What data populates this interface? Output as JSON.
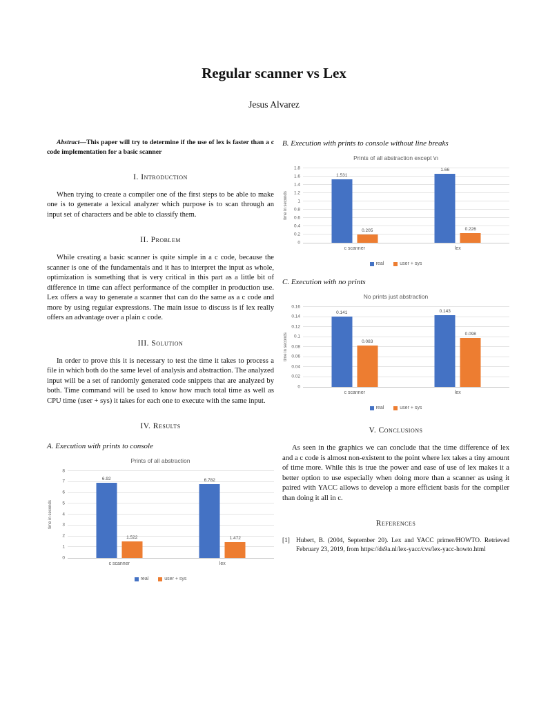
{
  "paper": {
    "title": "Regular scanner vs Lex",
    "author": "Jesus Alvarez",
    "abstract_label": "Abstract—",
    "abstract_text": "This paper will try to determine if the use of lex is faster than a c code implementation for a basic scanner",
    "sections": [
      {
        "heading": "I. Introduction",
        "body": "When trying to create a compiler one of the first steps to be able to make one is to generate a lexical analyzer which purpose is to scan through an input set of characters and be able to classify them."
      },
      {
        "heading": "II. Problem",
        "body": "While creating a basic scanner is quite simple in a c code, because the scanner is one of the fundamentals and it has to interpret the input as whole, optimization is something that is very critical in this part as a little bit of difference in time can affect performance of the compiler in production use. Lex offers a way to generate a scanner that can do the same as a c code and more by using regular expressions. The main issue to discuss is if lex really offers an advantage over a plain c code."
      },
      {
        "heading": "III. Solution",
        "body": "In order to prove this it is necessary to test the time it takes to process a file in which both do the same level of analysis and abstraction. The analyzed input will be a set of randomly generated code snippets that are analyzed by both. Time command will be used to know how much total time as well as CPU time (user + sys) it takes for each one to execute with the same input."
      },
      {
        "heading": "IV. Results",
        "body": ""
      },
      {
        "heading": "V. Conclusions",
        "body": "As seen in the graphics we can conclude that the time difference of lex and a c code is almost non-existent to the point where lex takes a tiny amount of time more. While this is true the power and ease of use of lex makes it a better option to use especially when doing more than a scanner as using it paired with YACC allows to develop a more efficient basis for the compiler than doing it all in c."
      }
    ],
    "subsections": [
      {
        "heading": "A. Execution with prints to console"
      },
      {
        "heading": "B. Execution with prints to console without line breaks"
      },
      {
        "heading": "C. Execution with no prints"
      }
    ],
    "references": {
      "heading": "References",
      "items": [
        {
          "number": "[1]",
          "text": "Hubert, B. (2004, September 20). Lex and YACC primer/HOWTO. Retrieved February 23, 2019, from https://ds9a.nl/lex-yacc/cvs/lex-yacc-howto.html"
        }
      ]
    }
  },
  "chart_data": [
    {
      "type": "bar",
      "title": "Prints of all abstraction",
      "ylabel": "time in seconds",
      "xlabel": "",
      "categories": [
        "c scanner",
        "lex"
      ],
      "series": [
        {
          "name": "real",
          "color": "#4472C4",
          "values": [
            6.92,
            6.782
          ]
        },
        {
          "name": "user + sys",
          "color": "#ED7D31",
          "values": [
            1.522,
            1.472
          ]
        }
      ],
      "ylim": [
        0,
        8
      ],
      "yticks": [
        0,
        1,
        2,
        3,
        4,
        5,
        6,
        7,
        8
      ],
      "grid": true,
      "legend_position": "bottom"
    },
    {
      "type": "bar",
      "title": "Prints of all abstraction except \\n",
      "ylabel": "time in seconds",
      "xlabel": "",
      "categories": [
        "c scanner",
        "lex"
      ],
      "series": [
        {
          "name": "real",
          "color": "#4472C4",
          "values": [
            1.531,
            1.66
          ]
        },
        {
          "name": "user + sys",
          "color": "#ED7D31",
          "values": [
            0.205,
            0.226
          ]
        }
      ],
      "ylim": [
        0,
        1.8
      ],
      "yticks": [
        0,
        0.2,
        0.4,
        0.6,
        0.8,
        1,
        1.2,
        1.4,
        1.6,
        1.8
      ],
      "grid": true,
      "legend_position": "bottom"
    },
    {
      "type": "bar",
      "title": "No prints just abstraction",
      "ylabel": "time in seconds",
      "xlabel": "",
      "categories": [
        "c scanner",
        "lex"
      ],
      "series": [
        {
          "name": "real",
          "color": "#4472C4",
          "values": [
            0.141,
            0.143
          ]
        },
        {
          "name": "user + sys",
          "color": "#ED7D31",
          "values": [
            0.083,
            0.098
          ]
        }
      ],
      "ylim": [
        0,
        0.16
      ],
      "yticks": [
        0,
        0.02,
        0.04,
        0.06,
        0.08,
        0.1,
        0.12,
        0.14,
        0.16
      ],
      "grid": true,
      "legend_position": "bottom"
    }
  ]
}
